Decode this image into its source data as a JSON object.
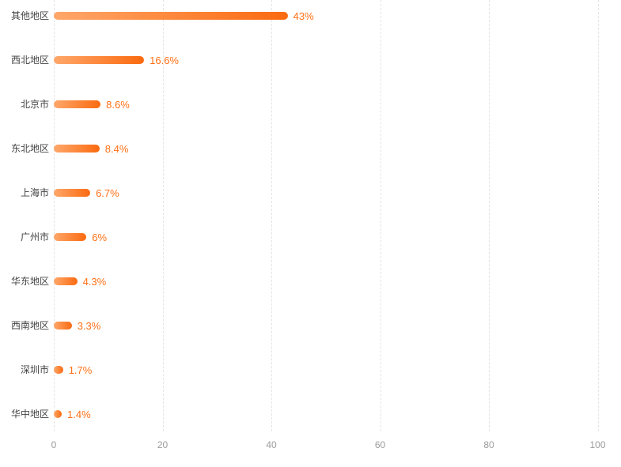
{
  "chart_data": {
    "type": "bar",
    "orientation": "horizontal",
    "title": "",
    "xlabel": "",
    "ylabel": "",
    "legend": "none",
    "grid": "vertical-dashed",
    "xlim": [
      0,
      100
    ],
    "x_ticks": [
      "0",
      "20",
      "40",
      "60",
      "80",
      "100"
    ],
    "x_tick_values": [
      0,
      20,
      40,
      60,
      80,
      100
    ],
    "categories": [
      "其他地区",
      "西北地区",
      "北京市",
      "东北地区",
      "上海市",
      "广州市",
      "华东地区",
      "西南地区",
      "深圳市",
      "华中地区"
    ],
    "values": [
      43,
      16.6,
      8.6,
      8.4,
      6.7,
      6,
      4.3,
      3.3,
      1.7,
      1.4
    ],
    "value_labels": [
      "43%",
      "16.6%",
      "8.6%",
      "8.4%",
      "6.7%",
      "6%",
      "4.3%",
      "3.3%",
      "1.7%",
      "1.4%"
    ],
    "colors": {
      "bar_gradient_start": "#ffa76a",
      "bar_gradient_end": "#fa6a10",
      "value_label": "#ff7015",
      "category_label": "#434343",
      "tick_label": "#9b9b9b",
      "gridline": "#e4e4e4",
      "background": "#ffffff"
    }
  }
}
